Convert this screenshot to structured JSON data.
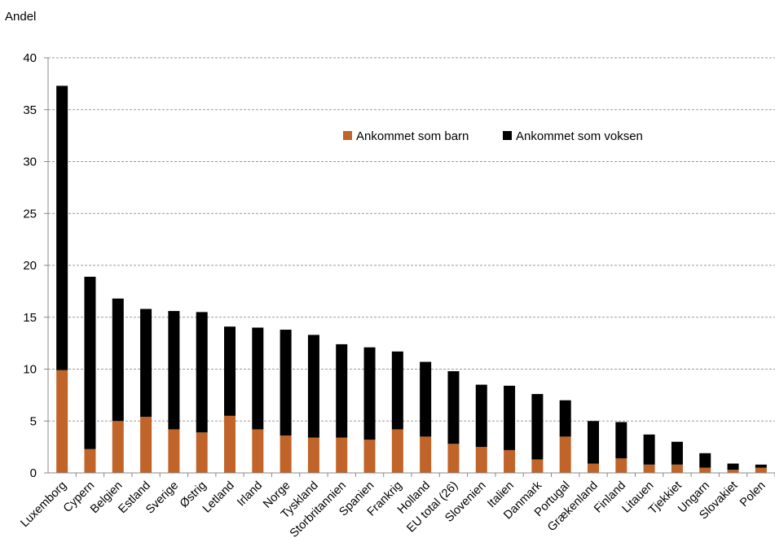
{
  "chart_data": {
    "type": "bar",
    "stacked": true,
    "ylabel": "Andel",
    "ylim": [
      0,
      40
    ],
    "yticks": [
      0,
      5,
      10,
      15,
      20,
      25,
      30,
      35,
      40
    ],
    "grid": true,
    "legend_position": "top-right",
    "categories": [
      "Luxemborg",
      "Cypern",
      "Belgien",
      "Estland",
      "Sverige",
      "Østrig",
      "Letland",
      "Irland",
      "Norge",
      "Tyskland",
      "Storbritannien",
      "Spanien",
      "Frankrig",
      "Holland",
      "EU total (26)",
      "Slovenien",
      "Italien",
      "Danmark",
      "Portugal",
      "Grækenland",
      "Finland",
      "Litauen",
      "Tjekkiet",
      "Ungarn",
      "Slovakiet",
      "Polen"
    ],
    "series": [
      {
        "name": "Ankommet som barn",
        "color": "#c0642a",
        "values": [
          9.9,
          2.3,
          5.0,
          5.4,
          4.2,
          3.9,
          5.5,
          4.2,
          3.6,
          3.4,
          3.4,
          3.2,
          4.2,
          3.5,
          2.8,
          2.5,
          2.2,
          1.3,
          3.5,
          0.9,
          1.4,
          0.8,
          0.8,
          0.5,
          0.3,
          0.5
        ]
      },
      {
        "name": "Ankommet som voksen",
        "color": "#000000",
        "values": [
          27.4,
          16.6,
          11.8,
          10.4,
          11.4,
          11.6,
          8.6,
          9.8,
          10.2,
          9.9,
          9.0,
          8.9,
          7.5,
          7.2,
          7.0,
          6.0,
          6.2,
          6.3,
          3.5,
          4.1,
          3.5,
          2.9,
          2.2,
          1.4,
          0.6,
          0.3
        ]
      }
    ]
  }
}
